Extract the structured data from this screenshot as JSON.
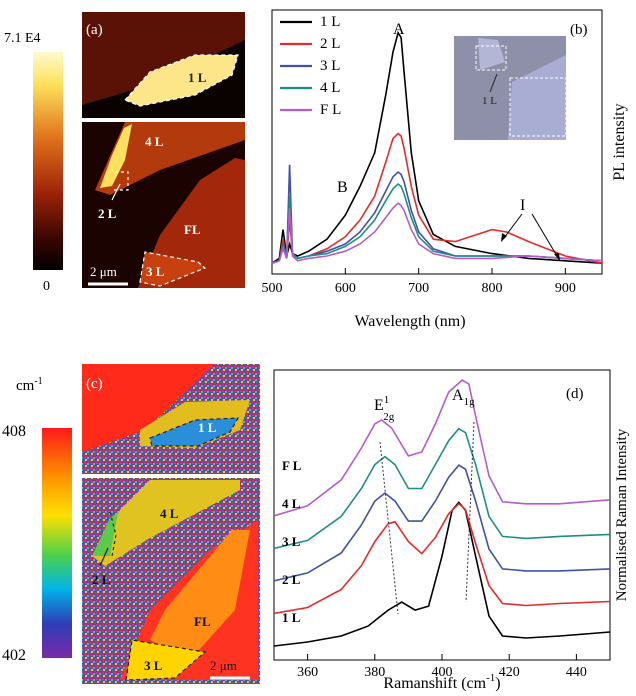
{
  "panel_a": {
    "label": "(a)",
    "colorbar_max": "7.1 E4",
    "colorbar_min": "0",
    "labels": [
      "1 L",
      "4 L",
      "2 L",
      "FL",
      "3 L"
    ],
    "scalebar": "2 μm"
  },
  "panel_b": {
    "label": "(b)",
    "peak_labels": [
      "A",
      "B",
      "I"
    ],
    "inset_label": "1 L"
  },
  "panel_c": {
    "label": "(c)",
    "colorbar_unit": "cm",
    "colorbar_unit_exp": "-1",
    "colorbar_max": "408",
    "colorbar_min": "402",
    "labels": [
      "1 L",
      "4 L",
      "2 L",
      "FL",
      "3 L"
    ],
    "scalebar": "2 μm"
  },
  "panel_d": {
    "label": "(d)",
    "peak_e": "E",
    "peak_e_sup": "1",
    "peak_e_sub": "2g",
    "peak_a": "A",
    "peak_a_sub": "1g"
  },
  "colors": {
    "1L": "#000000",
    "2L": "#e32b2b",
    "3L": "#4250a8",
    "4L": "#1e8f7f",
    "FL": "#b45cc8"
  },
  "chart_data": [
    {
      "type": "line",
      "panel": "b",
      "xlabel": "Wavelength (nm)",
      "ylabel": "PL intensity",
      "xlim": [
        500,
        950
      ],
      "xticks": [
        500,
        600,
        700,
        800,
        900
      ],
      "legend_position": "top-left",
      "series": [
        {
          "name": "1 L",
          "color": "#000000",
          "x": [
            500,
            510,
            515,
            520,
            524,
            528,
            535,
            550,
            575,
            600,
            620,
            640,
            655,
            665,
            672,
            676,
            680,
            690,
            700,
            720,
            750,
            800,
            850,
            900,
            950
          ],
          "y": [
            0.02,
            0.04,
            0.16,
            0.05,
            0.1,
            0.06,
            0.05,
            0.07,
            0.12,
            0.22,
            0.34,
            0.48,
            0.72,
            0.9,
            0.98,
            0.96,
            0.82,
            0.48,
            0.28,
            0.14,
            0.09,
            0.06,
            0.04,
            0.03,
            0.02
          ]
        },
        {
          "name": "2 L",
          "color": "#e32b2b",
          "x": [
            500,
            510,
            515,
            520,
            524,
            528,
            535,
            550,
            575,
            600,
            620,
            640,
            655,
            665,
            672,
            676,
            680,
            690,
            700,
            720,
            750,
            780,
            800,
            820,
            850,
            900,
            950
          ],
          "y": [
            0.02,
            0.03,
            0.12,
            0.04,
            0.2,
            0.06,
            0.04,
            0.05,
            0.08,
            0.13,
            0.2,
            0.3,
            0.44,
            0.54,
            0.56,
            0.55,
            0.5,
            0.34,
            0.22,
            0.12,
            0.11,
            0.14,
            0.16,
            0.15,
            0.11,
            0.05,
            0.02
          ]
        },
        {
          "name": "3 L",
          "color": "#4250a8",
          "x": [
            500,
            510,
            515,
            520,
            524,
            528,
            535,
            550,
            575,
            600,
            620,
            640,
            655,
            665,
            672,
            676,
            680,
            690,
            700,
            720,
            750,
            800,
            850,
            900,
            950
          ],
          "y": [
            0.02,
            0.03,
            0.1,
            0.04,
            0.43,
            0.06,
            0.04,
            0.05,
            0.07,
            0.1,
            0.15,
            0.23,
            0.32,
            0.38,
            0.4,
            0.39,
            0.36,
            0.24,
            0.15,
            0.08,
            0.05,
            0.05,
            0.05,
            0.04,
            0.03
          ]
        },
        {
          "name": "4 L",
          "color": "#1e8f7f",
          "x": [
            500,
            510,
            515,
            520,
            524,
            528,
            535,
            550,
            575,
            600,
            620,
            640,
            655,
            665,
            672,
            676,
            680,
            690,
            700,
            720,
            750,
            800,
            850,
            900,
            950
          ],
          "y": [
            0.02,
            0.03,
            0.09,
            0.04,
            0.3,
            0.06,
            0.04,
            0.05,
            0.06,
            0.09,
            0.13,
            0.2,
            0.28,
            0.33,
            0.35,
            0.34,
            0.31,
            0.21,
            0.13,
            0.07,
            0.05,
            0.05,
            0.05,
            0.04,
            0.03
          ]
        },
        {
          "name": "F L",
          "color": "#b45cc8",
          "x": [
            500,
            510,
            515,
            520,
            524,
            528,
            535,
            550,
            575,
            600,
            620,
            640,
            655,
            665,
            672,
            676,
            680,
            690,
            700,
            720,
            750,
            800,
            850,
            900,
            950
          ],
          "y": [
            0.02,
            0.03,
            0.08,
            0.04,
            0.25,
            0.05,
            0.03,
            0.04,
            0.05,
            0.07,
            0.1,
            0.15,
            0.21,
            0.25,
            0.27,
            0.26,
            0.24,
            0.16,
            0.1,
            0.06,
            0.04,
            0.04,
            0.05,
            0.04,
            0.03
          ]
        }
      ]
    },
    {
      "type": "line",
      "panel": "d",
      "xlabel": "Ramanshift (cm",
      "xlabel_exp": "-1",
      "xlabel_end": ")",
      "ylabel": "Normalised Raman Intensity",
      "xlim": [
        350,
        450
      ],
      "xticks": [
        360,
        380,
        400,
        420,
        440
      ],
      "series": [
        {
          "name": "1 L",
          "color": "#000000",
          "x": [
            350,
            360,
            370,
            378,
            384,
            388,
            392,
            396,
            400,
            403,
            405,
            407,
            410,
            414,
            418,
            425,
            435,
            450
          ],
          "y": [
            0.0,
            0.02,
            0.05,
            0.1,
            0.18,
            0.22,
            0.18,
            0.2,
            0.45,
            0.68,
            0.72,
            0.68,
            0.45,
            0.15,
            0.05,
            0.04,
            0.05,
            0.07
          ]
        },
        {
          "name": "2 L",
          "color": "#e32b2b",
          "x": [
            350,
            360,
            370,
            376,
            380,
            384,
            386,
            390,
            394,
            398,
            402,
            405,
            407,
            410,
            414,
            418,
            425,
            435,
            450
          ],
          "y": [
            0.0,
            0.03,
            0.12,
            0.24,
            0.36,
            0.45,
            0.46,
            0.36,
            0.3,
            0.38,
            0.5,
            0.55,
            0.52,
            0.35,
            0.14,
            0.05,
            0.04,
            0.05,
            0.06
          ]
        },
        {
          "name": "3 L",
          "color": "#4250a8",
          "x": [
            350,
            360,
            370,
            376,
            380,
            383,
            386,
            390,
            394,
            398,
            402,
            405,
            407,
            410,
            414,
            418,
            425,
            435,
            450
          ],
          "y": [
            0.0,
            0.04,
            0.14,
            0.28,
            0.4,
            0.44,
            0.4,
            0.3,
            0.3,
            0.4,
            0.52,
            0.58,
            0.56,
            0.4,
            0.16,
            0.06,
            0.05,
            0.05,
            0.06
          ]
        },
        {
          "name": "4 L",
          "color": "#1e8f7f",
          "x": [
            350,
            360,
            370,
            376,
            380,
            383,
            386,
            390,
            394,
            398,
            402,
            405,
            407,
            410,
            414,
            418,
            425,
            435,
            450
          ],
          "y": [
            0.0,
            0.04,
            0.16,
            0.3,
            0.42,
            0.46,
            0.42,
            0.3,
            0.3,
            0.42,
            0.54,
            0.6,
            0.58,
            0.42,
            0.16,
            0.06,
            0.05,
            0.06,
            0.07
          ]
        },
        {
          "name": "F L",
          "color": "#b45cc8",
          "x": [
            350,
            360,
            370,
            376,
            380,
            382,
            385,
            390,
            394,
            398,
            402,
            406,
            408,
            410,
            414,
            418,
            425,
            435,
            450
          ],
          "y": [
            0.0,
            0.05,
            0.18,
            0.34,
            0.46,
            0.48,
            0.44,
            0.3,
            0.32,
            0.46,
            0.62,
            0.68,
            0.66,
            0.5,
            0.2,
            0.07,
            0.06,
            0.06,
            0.08
          ]
        }
      ],
      "offsets": [
        0.0,
        0.25,
        0.5,
        0.75,
        1.0
      ],
      "label_order": [
        "F L",
        "4 L",
        "3 L",
        "2 L",
        "1 L"
      ]
    }
  ]
}
